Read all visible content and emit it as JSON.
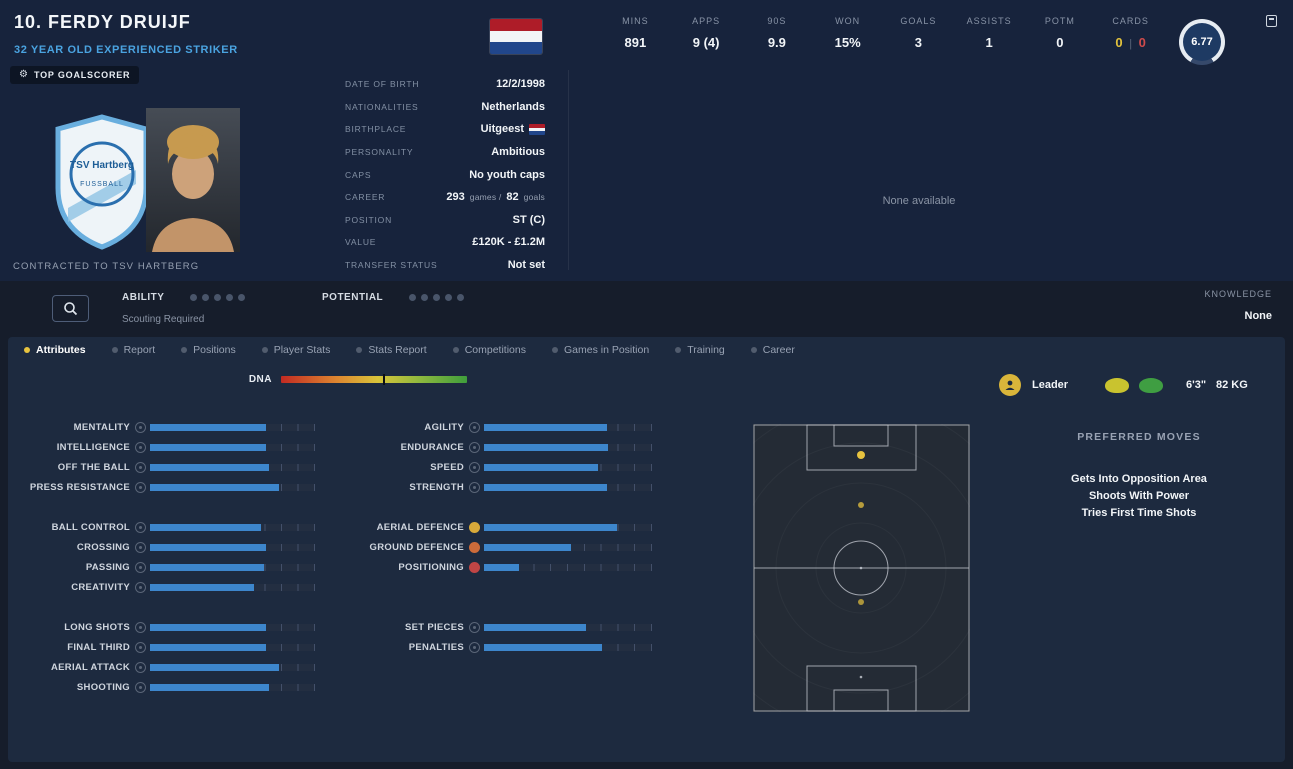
{
  "colors": {
    "accent_blue": "#4aa3e0",
    "bar_blue": "#3d86cc",
    "active_tab_dot": "#e7c33f",
    "card_yellow": "#e2c23c",
    "card_red": "#cf4b4b",
    "leader_gold": "#d9b53a",
    "left_foot": "#c9c32f",
    "right_foot": "#3f9e42",
    "flag_red": "#AE1C28",
    "flag_blue": "#21468B",
    "position_dot": "#e7c33f"
  },
  "header": {
    "name": "10. FERDY DRUIJF",
    "subtitle": "32 YEAR OLD EXPERIENCED STRIKER",
    "badge": "TOP GOALSCORER",
    "contracted": "CONTRACTED TO TSV HARTBERG",
    "club_badge_line1": "TSV Hartberg",
    "club_badge_line2": "FUSSBALL",
    "none_available": "None available",
    "rating": "6.77"
  },
  "stats": [
    {
      "label": "MINS",
      "value": "891"
    },
    {
      "label": "APPS",
      "value": "9 (4)"
    },
    {
      "label": "90S",
      "value": "9.9"
    },
    {
      "label": "WON",
      "value": "15%"
    },
    {
      "label": "GOALS",
      "value": "3"
    },
    {
      "label": "ASSISTS",
      "value": "1"
    },
    {
      "label": "POTM",
      "value": "0"
    }
  ],
  "cards": {
    "label": "CARDS",
    "yellow": "0",
    "sep": "|",
    "red": "0"
  },
  "info_rows": [
    {
      "label": "DATE OF BIRTH",
      "value": "12/2/1998"
    },
    {
      "label": "NATIONALITIES",
      "value": "Netherlands"
    },
    {
      "label": "BIRTHPLACE",
      "value": "Uitgeest"
    },
    {
      "label": "PERSONALITY",
      "value": "Ambitious"
    },
    {
      "label": "CAPS",
      "value": "No youth caps"
    },
    {
      "label": "CAREER",
      "games": "293",
      "games_unit": "games /",
      "goals": "82",
      "goals_unit": "goals"
    },
    {
      "label": "POSITION",
      "value": "ST (C)"
    },
    {
      "label": "VALUE",
      "value": "£120K - £1.2M"
    },
    {
      "label": "TRANSFER STATUS",
      "value": "Not set"
    }
  ],
  "scouting": {
    "ability_label": "ABILITY",
    "potential_label": "POTENTIAL",
    "note": "Scouting Required",
    "knowledge_label": "KNOWLEDGE",
    "knowledge_value": "None"
  },
  "tabs": [
    {
      "label": "Attributes"
    },
    {
      "label": "Report"
    },
    {
      "label": "Positions"
    },
    {
      "label": "Player Stats"
    },
    {
      "label": "Stats Report"
    },
    {
      "label": "Competitions"
    },
    {
      "label": "Games in Position"
    },
    {
      "label": "Training"
    },
    {
      "label": "Career"
    }
  ],
  "dna": {
    "label": "DNA",
    "marker_percent": 55
  },
  "traits": {
    "leader": "Leader",
    "height": "6'3\"",
    "weight": "82 KG"
  },
  "attributes": {
    "left_groups": [
      {
        "rows": [
          {
            "label": "MENTALITY",
            "value": 70
          },
          {
            "label": "INTELLIGENCE",
            "value": 70
          },
          {
            "label": "OFF THE BALL",
            "value": 72
          },
          {
            "label": "PRESS RESISTANCE",
            "value": 78
          }
        ]
      },
      {
        "rows": [
          {
            "label": "BALL CONTROL",
            "value": 67
          },
          {
            "label": "CROSSING",
            "value": 70
          },
          {
            "label": "PASSING",
            "value": 69
          },
          {
            "label": "CREATIVITY",
            "value": 63
          }
        ]
      },
      {
        "rows": [
          {
            "label": "LONG SHOTS",
            "value": 70
          },
          {
            "label": "FINAL THIRD",
            "value": 70
          },
          {
            "label": "AERIAL ATTACK",
            "value": 78
          },
          {
            "label": "SHOOTING",
            "value": 72
          }
        ]
      }
    ],
    "right_groups": [
      {
        "rows": [
          {
            "label": "AGILITY",
            "value": 73
          },
          {
            "label": "ENDURANCE",
            "value": 74
          },
          {
            "label": "SPEED",
            "value": 68
          },
          {
            "label": "STRENGTH",
            "value": 73
          }
        ]
      },
      {
        "rows": [
          {
            "label": "AERIAL DEFENCE",
            "value": 79,
            "icon_color": "#d8a93a"
          },
          {
            "label": "GROUND DEFENCE",
            "value": 52,
            "icon_color": "#cc6b3a"
          },
          {
            "label": "POSITIONING",
            "value": 21,
            "icon_color": "#c04545"
          }
        ]
      },
      {
        "rows": [
          {
            "label": "SET PIECES",
            "value": 61
          },
          {
            "label": "PENALTIES",
            "value": 70
          }
        ]
      }
    ]
  },
  "preferred_moves": {
    "title": "PREFERRED MOVES",
    "items": [
      "Gets Into Opposition Area",
      "Shoots With Power",
      "Tries First Time Shots"
    ]
  }
}
